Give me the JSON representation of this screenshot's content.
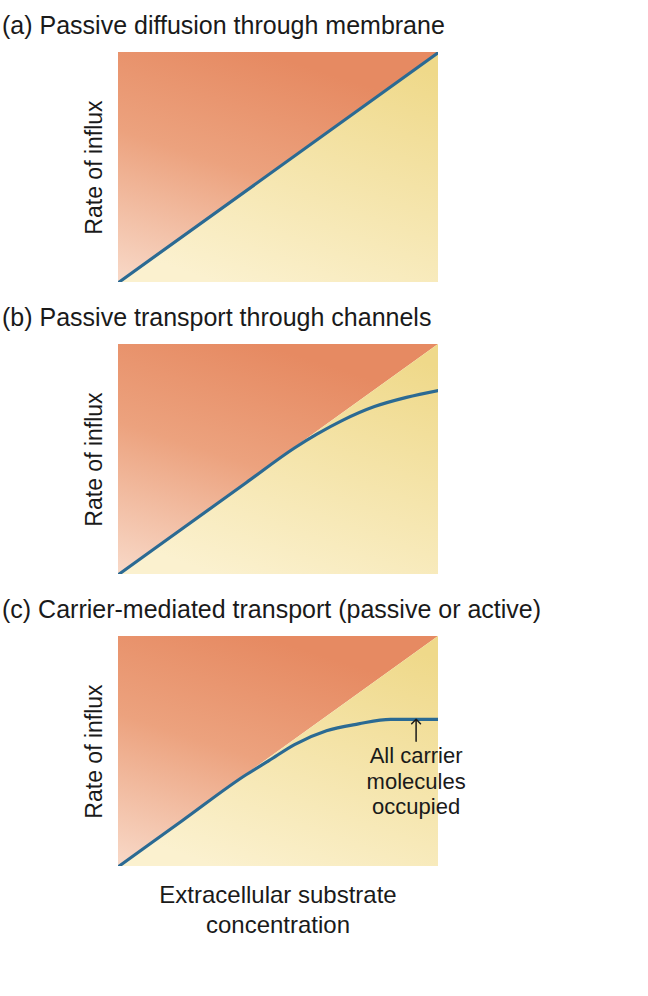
{
  "chart_data": [
    {
      "type": "line",
      "title": "(a) Passive diffusion through membrane",
      "ylabel": "Rate of influx",
      "x": [
        0,
        100
      ],
      "values": [
        0,
        100
      ],
      "color": "#2b6a93",
      "xlim": [
        0,
        100
      ],
      "ylim": [
        0,
        100
      ],
      "tick_labels": false
    },
    {
      "type": "line",
      "title": "(b) Passive transport through channels",
      "ylabel": "Rate of influx",
      "x": [
        0,
        20,
        40,
        55,
        62,
        70,
        80,
        90,
        100
      ],
      "values": [
        0,
        20,
        40,
        55,
        61,
        67,
        73,
        77,
        80
      ],
      "color": "#2b6a93",
      "xlim": [
        0,
        100
      ],
      "ylim": [
        0,
        100
      ],
      "tick_labels": false
    },
    {
      "type": "line",
      "title": "(c) Carrier-mediated transport (passive or active)",
      "ylabel": "Rate of influx",
      "xlabel": "Extracellular substrate\nconcentration",
      "x": [
        0,
        20,
        40,
        47,
        55,
        65,
        75,
        85,
        100
      ],
      "values": [
        0,
        20,
        40,
        46,
        53,
        59,
        62,
        64,
        64
      ],
      "color": "#2b6a93",
      "xlim": [
        0,
        100
      ],
      "ylim": [
        0,
        100
      ],
      "tick_labels": false,
      "annotation": {
        "text": "All carrier\nmolecules\noccupied",
        "x": 93,
        "y": 64
      }
    }
  ]
}
